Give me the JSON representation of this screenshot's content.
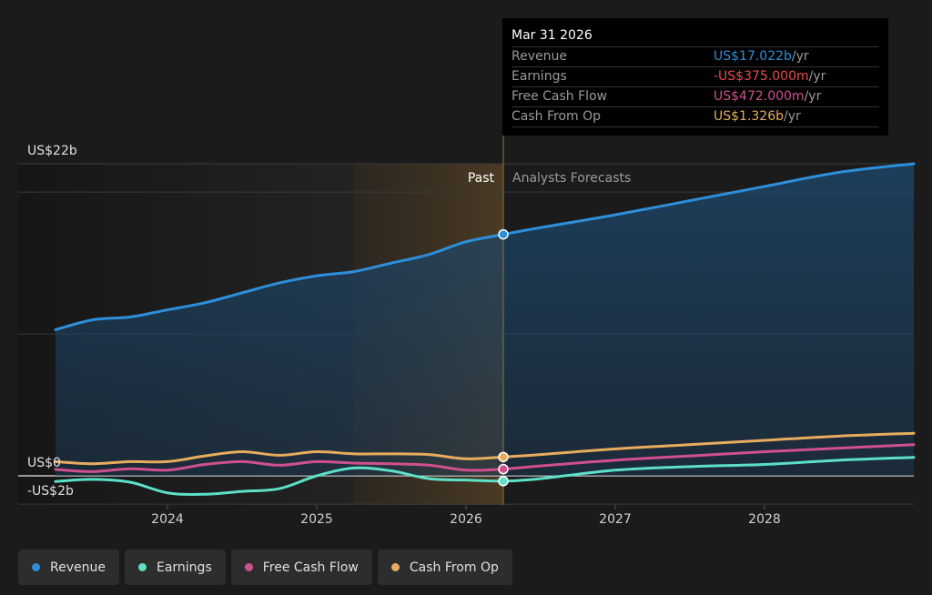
{
  "chart_data": {
    "type": "area",
    "x_unit": "year",
    "y_unit": "US$ billions",
    "ylim": [
      -2,
      22
    ],
    "y_tick_labels": [
      {
        "value": 22,
        "label": "US$22b"
      },
      {
        "value": 0,
        "label": "US$0"
      },
      {
        "value": -2,
        "label": "-US$2b"
      }
    ],
    "x_ticks": [
      2024,
      2025,
      2026,
      2027,
      2028
    ],
    "xlim": [
      2023.0,
      2029.0
    ],
    "divider_x": 2026.25,
    "past_highlight_start": 2025.25,
    "past_label": "Past",
    "forecast_label": "Analysts Forecasts",
    "series": [
      {
        "name": "Revenue",
        "color": "#2d8fdb",
        "fill": true,
        "points": [
          [
            2023.25,
            10.3
          ],
          [
            2023.5,
            11.0
          ],
          [
            2023.75,
            11.2
          ],
          [
            2024.0,
            11.7
          ],
          [
            2024.25,
            12.2
          ],
          [
            2024.5,
            12.9
          ],
          [
            2024.75,
            13.6
          ],
          [
            2025.0,
            14.1
          ],
          [
            2025.25,
            14.4
          ],
          [
            2025.5,
            15.0
          ],
          [
            2025.75,
            15.6
          ],
          [
            2026.0,
            16.5
          ],
          [
            2026.25,
            17.022
          ],
          [
            2026.5,
            17.5
          ],
          [
            2027.0,
            18.4
          ],
          [
            2027.5,
            19.4
          ],
          [
            2028.0,
            20.4
          ],
          [
            2028.5,
            21.4
          ],
          [
            2029.0,
            22.0
          ]
        ]
      },
      {
        "name": "Earnings",
        "color": "#5ce1c8",
        "fill": false,
        "points": [
          [
            2023.25,
            -0.4
          ],
          [
            2023.5,
            -0.25
          ],
          [
            2023.75,
            -0.45
          ],
          [
            2024.0,
            -1.2
          ],
          [
            2024.25,
            -1.3
          ],
          [
            2024.5,
            -1.1
          ],
          [
            2024.75,
            -0.9
          ],
          [
            2025.0,
            0.0
          ],
          [
            2025.25,
            0.55
          ],
          [
            2025.5,
            0.35
          ],
          [
            2025.75,
            -0.2
          ],
          [
            2026.0,
            -0.3
          ],
          [
            2026.25,
            -0.375
          ],
          [
            2026.5,
            -0.2
          ],
          [
            2027.0,
            0.4
          ],
          [
            2027.5,
            0.65
          ],
          [
            2028.0,
            0.8
          ],
          [
            2028.5,
            1.1
          ],
          [
            2029.0,
            1.3
          ]
        ]
      },
      {
        "name": "Free Cash Flow",
        "color": "#d0508e",
        "fill": false,
        "points": [
          [
            2023.25,
            0.45
          ],
          [
            2023.5,
            0.3
          ],
          [
            2023.75,
            0.5
          ],
          [
            2024.0,
            0.4
          ],
          [
            2024.25,
            0.8
          ],
          [
            2024.5,
            1.0
          ],
          [
            2024.75,
            0.75
          ],
          [
            2025.0,
            1.0
          ],
          [
            2025.25,
            0.9
          ],
          [
            2025.5,
            0.85
          ],
          [
            2025.75,
            0.75
          ],
          [
            2026.0,
            0.4
          ],
          [
            2026.25,
            0.472
          ],
          [
            2026.5,
            0.7
          ],
          [
            2027.0,
            1.1
          ],
          [
            2027.5,
            1.4
          ],
          [
            2028.0,
            1.7
          ],
          [
            2028.5,
            1.95
          ],
          [
            2029.0,
            2.2
          ]
        ]
      },
      {
        "name": "Cash From Op",
        "color": "#e8ac5e",
        "fill": false,
        "points": [
          [
            2023.25,
            1.0
          ],
          [
            2023.5,
            0.85
          ],
          [
            2023.75,
            1.0
          ],
          [
            2024.0,
            1.0
          ],
          [
            2024.25,
            1.4
          ],
          [
            2024.5,
            1.7
          ],
          [
            2024.75,
            1.45
          ],
          [
            2025.0,
            1.7
          ],
          [
            2025.25,
            1.55
          ],
          [
            2025.5,
            1.55
          ],
          [
            2025.75,
            1.5
          ],
          [
            2026.0,
            1.2
          ],
          [
            2026.25,
            1.326
          ],
          [
            2026.5,
            1.5
          ],
          [
            2027.0,
            1.9
          ],
          [
            2027.5,
            2.2
          ],
          [
            2028.0,
            2.5
          ],
          [
            2028.5,
            2.8
          ],
          [
            2029.0,
            3.0
          ]
        ]
      }
    ]
  },
  "tooltip": {
    "date": "Mar 31 2026",
    "rows": [
      {
        "label": "Revenue",
        "value": "US$17.022b",
        "unit": " /yr",
        "color": "#2d8fdb"
      },
      {
        "label": "Earnings",
        "value": "-US$375.000m",
        "unit": " /yr",
        "color": "#e84b4b"
      },
      {
        "label": "Free Cash Flow",
        "value": "US$472.000m",
        "unit": " /yr",
        "color": "#d0508e"
      },
      {
        "label": "Cash From Op",
        "value": "US$1.326b",
        "unit": " /yr",
        "color": "#e8ac5e"
      }
    ]
  },
  "legend": [
    {
      "label": "Revenue",
      "color": "#2d8fdb"
    },
    {
      "label": "Earnings",
      "color": "#5ce1c8"
    },
    {
      "label": "Free Cash Flow",
      "color": "#d0508e"
    },
    {
      "label": "Cash From Op",
      "color": "#e8ac5e"
    }
  ]
}
